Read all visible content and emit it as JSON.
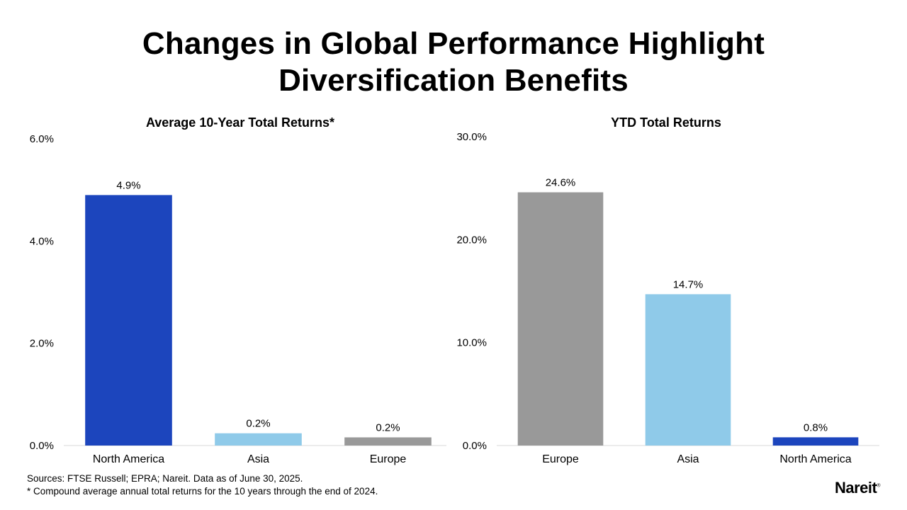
{
  "page": {
    "title_line1": "Changes in Global Performance Highlight",
    "title_line2": "Diversification Benefits",
    "footnote_sources": "Sources: FTSE Russell; EPRA; Nareit. Data as of June 30, 2025.",
    "footnote_note": "* Compound average annual total returns for the 10 years through the end of 2024.",
    "logo_text": "Nareit",
    "logo_mark": "®"
  },
  "chart_data": [
    {
      "type": "bar",
      "title": "Average 10-Year Total Returns*",
      "categories": [
        "North America",
        "Asia",
        "Europe"
      ],
      "values": [
        4.9,
        0.2,
        0.2
      ],
      "value_labels": [
        "4.9%",
        "0.2%",
        "0.2%"
      ],
      "bar_heights": [
        4.9,
        0.24,
        0.16
      ],
      "colors": [
        "#1c45bd",
        "#8fcae9",
        "#999999"
      ],
      "ylim": [
        0,
        6
      ],
      "yticks": [
        0,
        2,
        4,
        6
      ],
      "ytick_labels": [
        "0.0%",
        "2.0%",
        "4.0%",
        "6.0%"
      ],
      "grid": false,
      "legend": "none"
    },
    {
      "type": "bar",
      "title": "YTD Total Returns",
      "categories": [
        "Europe",
        "Asia",
        "North America"
      ],
      "values": [
        24.6,
        14.7,
        0.8
      ],
      "value_labels": [
        "24.6%",
        "14.7%",
        "0.8%"
      ],
      "bar_heights": [
        24.6,
        14.7,
        0.8
      ],
      "colors": [
        "#999999",
        "#8fcae9",
        "#1c45bd"
      ],
      "ylim": [
        0,
        30
      ],
      "yticks": [
        0,
        10,
        20,
        30
      ],
      "ytick_labels": [
        "0.0%",
        "10.0%",
        "20.0%",
        "30.0%"
      ],
      "grid": false,
      "legend": "none"
    }
  ]
}
